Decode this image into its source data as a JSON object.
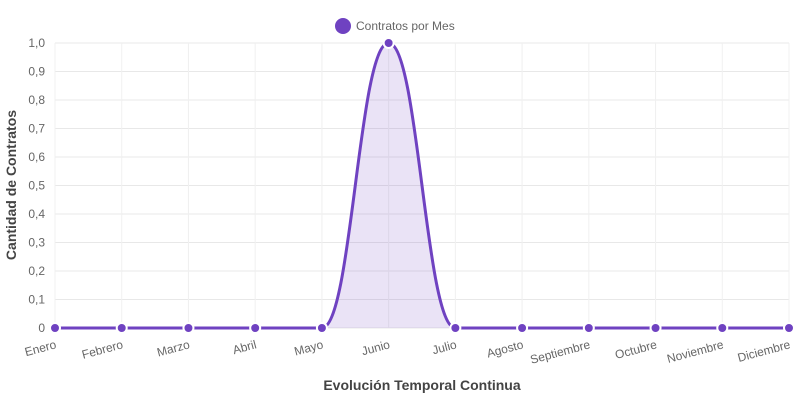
{
  "chart_data": {
    "type": "line",
    "categories": [
      "Enero",
      "Febrero",
      "Marzo",
      "Abril",
      "Mayo",
      "Junio",
      "Julio",
      "Agosto",
      "Septiembre",
      "Octubre",
      "Noviembre",
      "Diciembre"
    ],
    "series": [
      {
        "name": "Contratos por Mes",
        "values": [
          0,
          0,
          0,
          0,
          0,
          1,
          0,
          0,
          0,
          0,
          0,
          0
        ],
        "color": "#6f42c1",
        "fill": "rgba(111,66,193,0.15)"
      }
    ],
    "title": "",
    "xlabel": "Evolución Temporal Continua",
    "ylabel": "Cantidad de Contratos",
    "ylim": [
      0,
      1
    ],
    "yticks": [
      "0",
      "0,1",
      "0,2",
      "0,3",
      "0,4",
      "0,5",
      "0,6",
      "0,7",
      "0,8",
      "0,9",
      "1,0"
    ],
    "grid": true,
    "legend": "top-center",
    "area_fill": true,
    "smooth": true
  }
}
